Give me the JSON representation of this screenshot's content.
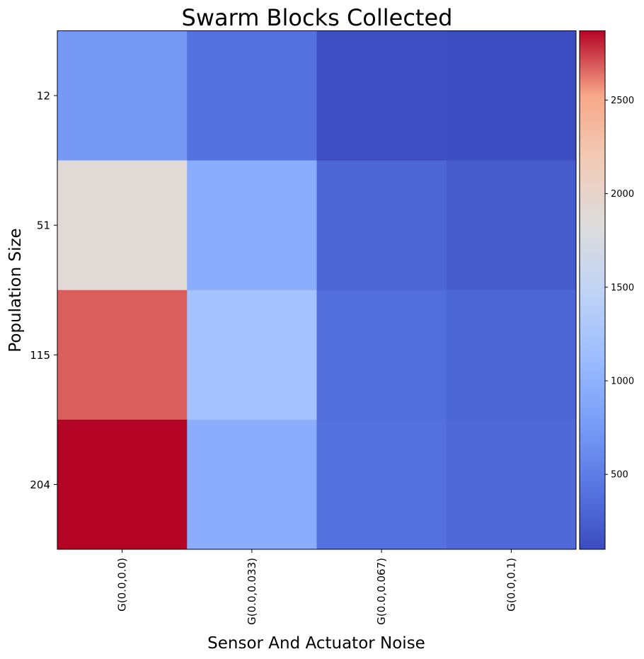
{
  "chart_data": {
    "type": "heatmap",
    "title": "Swarm Blocks Collected",
    "xlabel": "Sensor And Actuator Noise",
    "ylabel": "Population Size",
    "x_categories": [
      "G(0.0,0.0)",
      "G(0.0,0.033)",
      "G(0.0,0.067)",
      "G(0.0,0.1)"
    ],
    "y_categories": [
      "12",
      "51",
      "115",
      "204"
    ],
    "values": [
      [
        740,
        400,
        120,
        110
      ],
      [
        1900,
        940,
        310,
        230
      ],
      [
        2680,
        1200,
        370,
        310
      ],
      [
        2870,
        950,
        400,
        330
      ]
    ],
    "colormap": "coolwarm",
    "colorbar": {
      "vmin": 100,
      "vmax": 2870,
      "ticks": [
        500,
        1000,
        1500,
        2000,
        2500
      ]
    },
    "grid": false
  }
}
